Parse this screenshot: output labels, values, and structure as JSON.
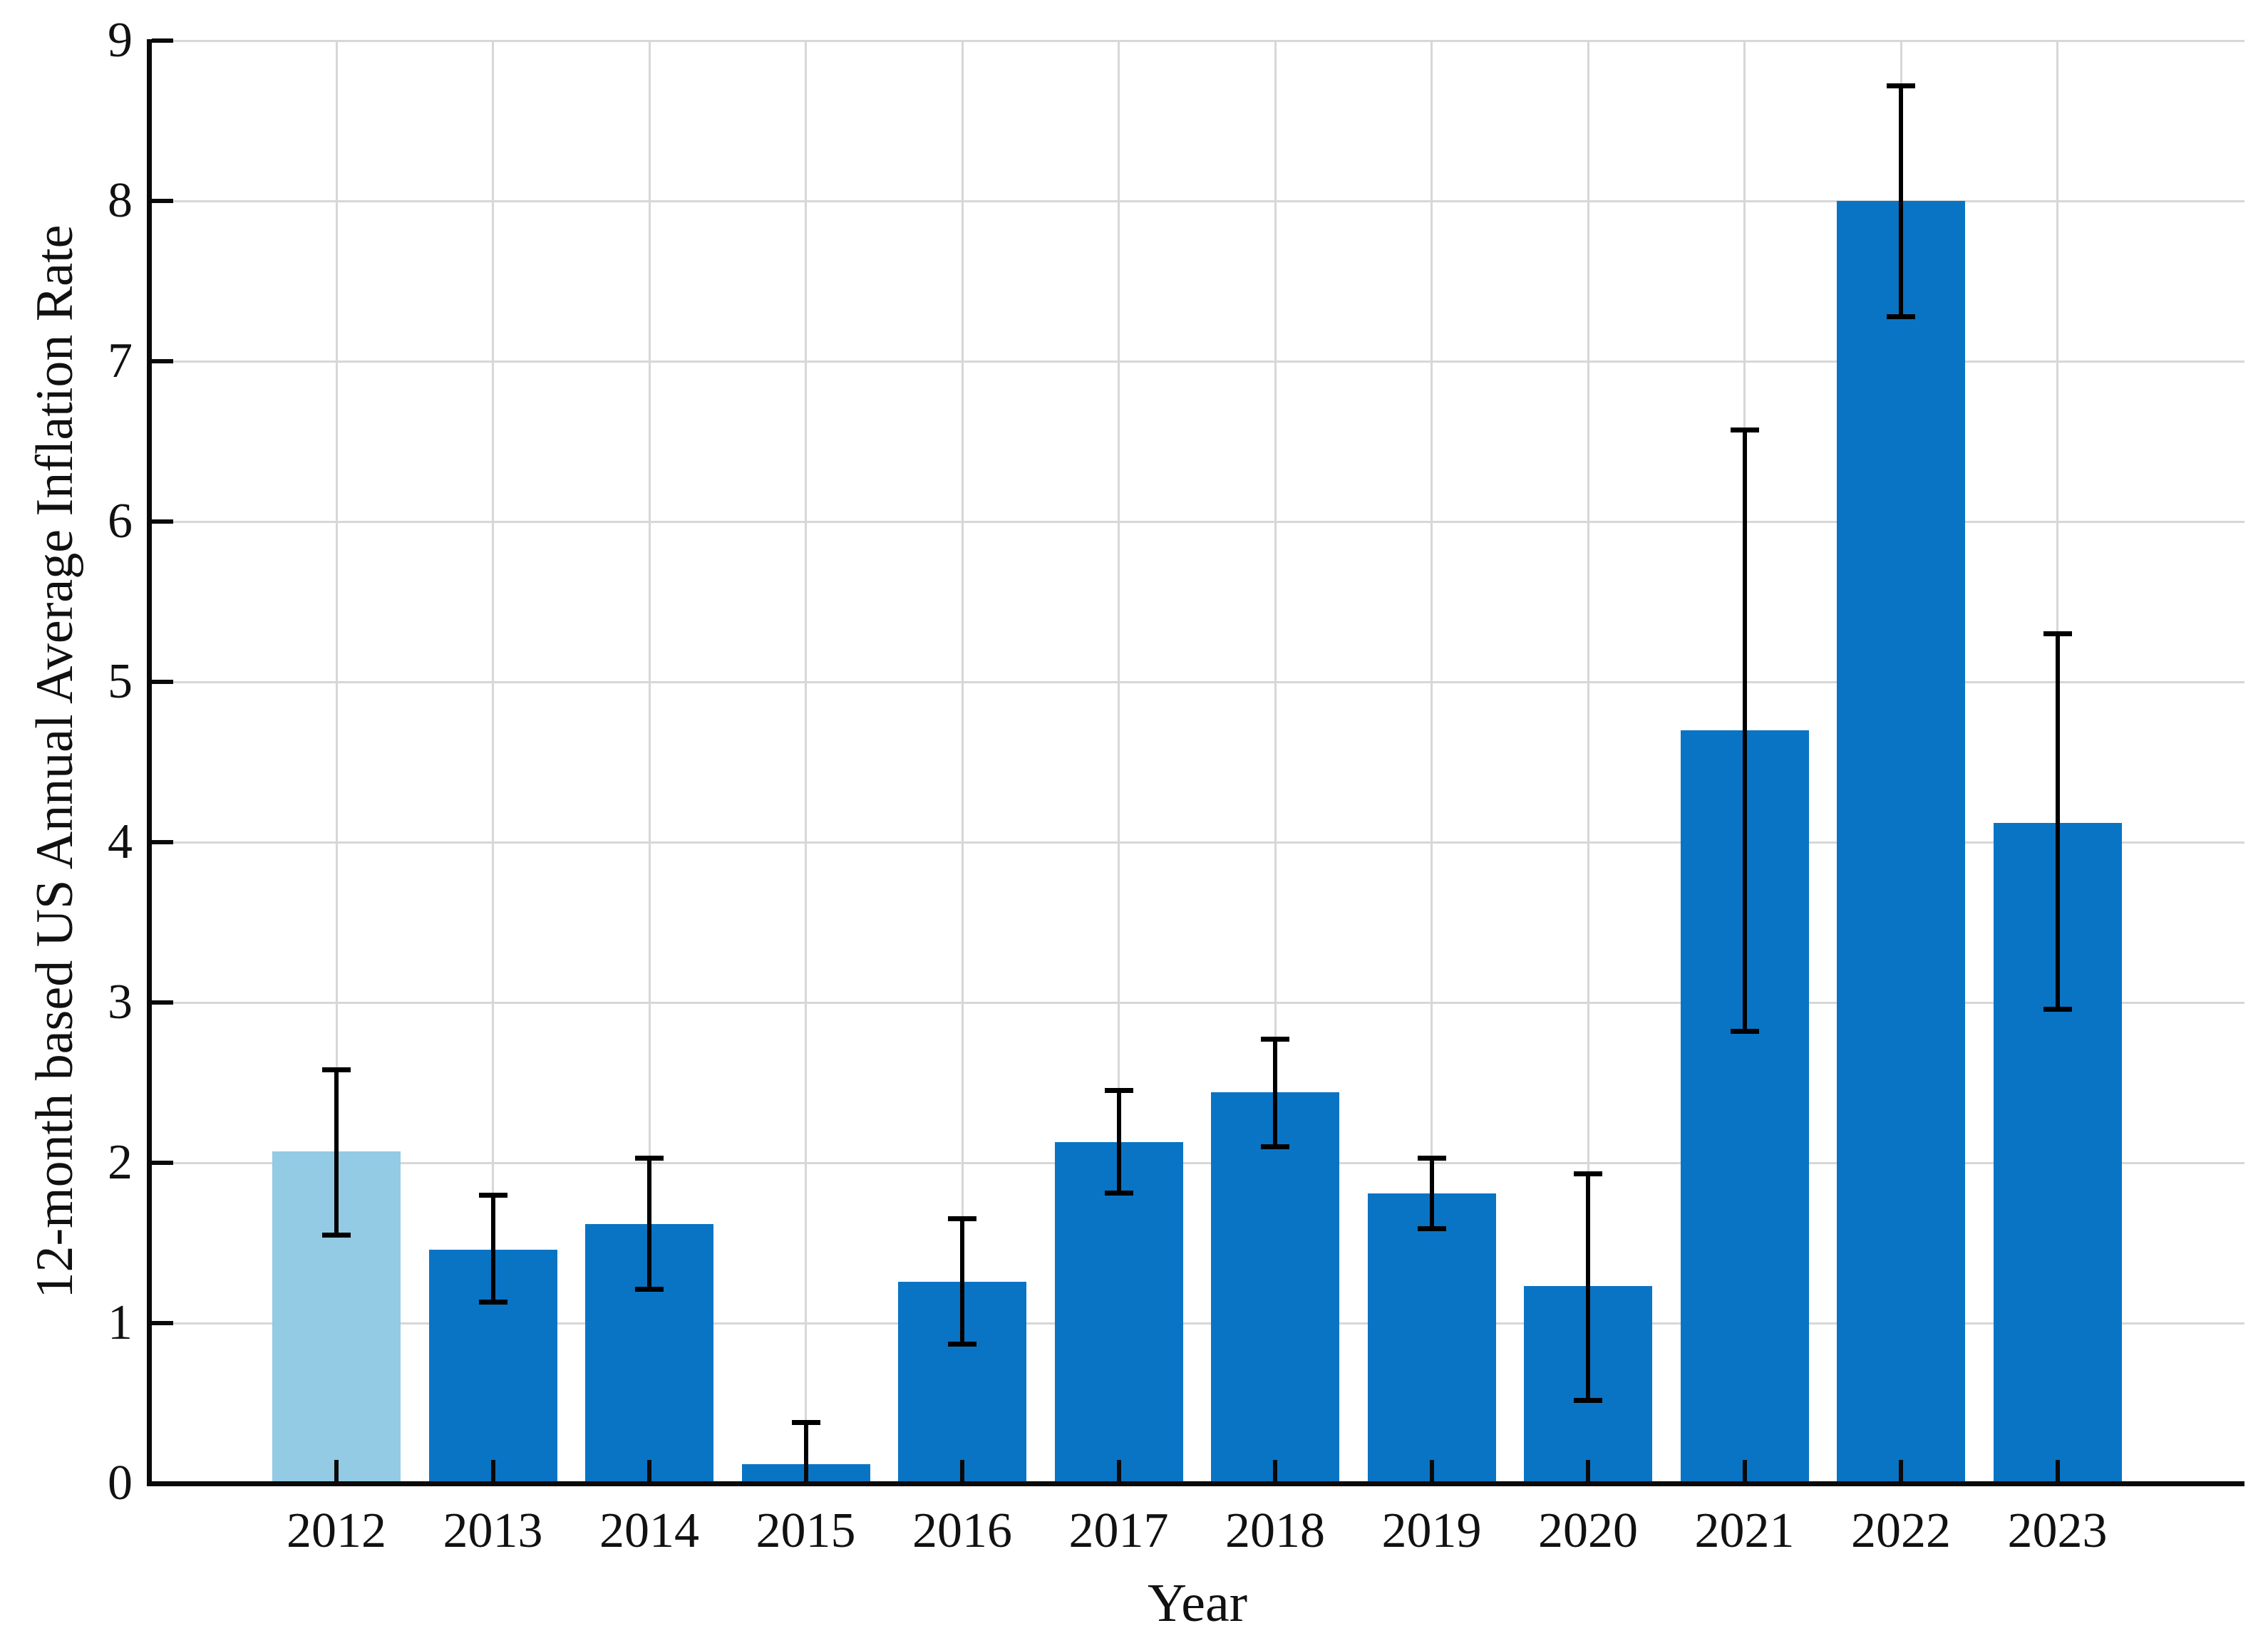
{
  "chart_data": {
    "type": "bar",
    "title": "",
    "xlabel": "Year",
    "ylabel": "12-month based US Annual Average Inflation Rate",
    "categories": [
      "2012",
      "2013",
      "2014",
      "2015",
      "2016",
      "2017",
      "2018",
      "2019",
      "2020",
      "2021",
      "2022",
      "2023"
    ],
    "values": [
      2.07,
      1.46,
      1.62,
      0.12,
      1.26,
      2.13,
      2.44,
      1.81,
      1.23,
      4.7,
      8.0,
      4.12
    ],
    "error_low": [
      1.55,
      1.13,
      1.21,
      -0.14,
      0.87,
      1.81,
      2.1,
      1.59,
      0.52,
      2.82,
      7.28,
      2.96
    ],
    "error_high": [
      2.58,
      1.8,
      2.03,
      0.38,
      1.65,
      2.45,
      2.77,
      2.03,
      1.93,
      6.57,
      8.72,
      5.3
    ],
    "ylim": [
      0,
      9
    ],
    "yticks": [
      0,
      1,
      2,
      3,
      4,
      5,
      6,
      7,
      8,
      9
    ],
    "grid": "both",
    "legend": "none",
    "highlight_index": 0,
    "colors": {
      "bar": "#0a74c4",
      "highlight_bar": "#92cbe3",
      "error_bar": "#000000",
      "grid": "#d7d7d7",
      "axis": "#0a0a0a",
      "text": "#111111",
      "background": "#ffffff"
    }
  }
}
